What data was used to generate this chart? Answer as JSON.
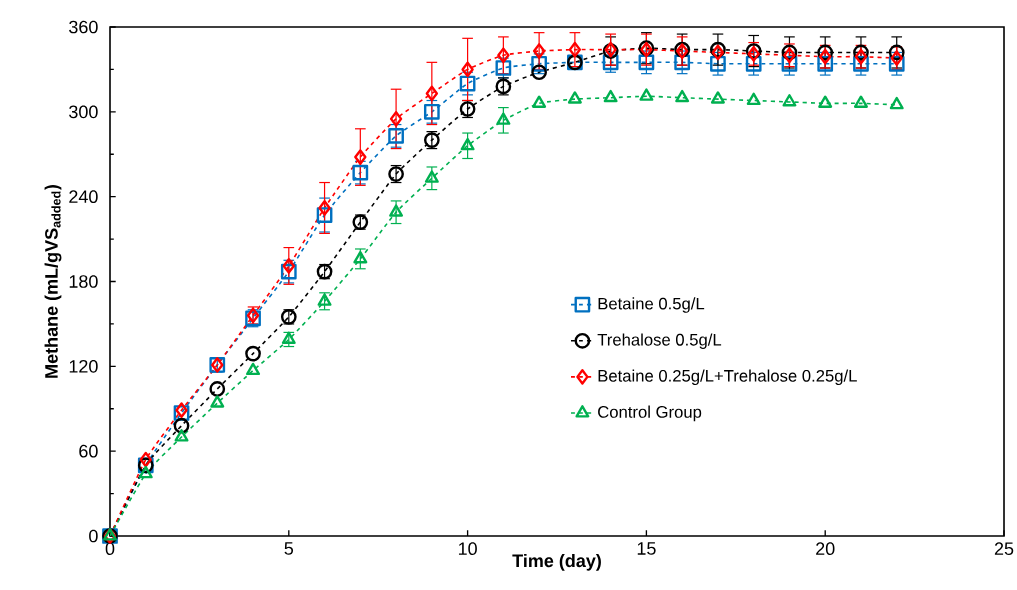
{
  "chart_data": {
    "type": "line",
    "xlabel": "Time (day)",
    "ylabel": "Methane (mL/gVS$_{added}$)",
    "x": [
      0,
      1,
      2,
      3,
      4,
      5,
      6,
      7,
      8,
      9,
      10,
      11,
      12,
      13,
      14,
      15,
      16,
      17,
      18,
      19,
      20,
      21,
      22
    ],
    "series": [
      {
        "name": "Betaine 0.5g/L",
        "color": "#0070c0",
        "marker": "square",
        "values": [
          0,
          50,
          87,
          121,
          154,
          187,
          227,
          257,
          283,
          300,
          320,
          331,
          334,
          335,
          335,
          335,
          335,
          334,
          334,
          334,
          334,
          334,
          334
        ],
        "errors": [
          null,
          null,
          null,
          5,
          6,
          8,
          12,
          8,
          8,
          8,
          8,
          7,
          7,
          null,
          7,
          8,
          8,
          8,
          8,
          8,
          8,
          8,
          8
        ]
      },
      {
        "name": "Trehalose 0.5g/L",
        "color": "#000000",
        "marker": "circle",
        "values": [
          0,
          50,
          78,
          104,
          129,
          155,
          187,
          222,
          256,
          280,
          302,
          318,
          328,
          335,
          343,
          345,
          344,
          344,
          343,
          342,
          342,
          342,
          342
        ],
        "errors": [
          null,
          null,
          null,
          null,
          null,
          5,
          5,
          5,
          6,
          6,
          6,
          6,
          null,
          null,
          10,
          11,
          11,
          11,
          11,
          11,
          11,
          11,
          11
        ]
      },
      {
        "name": "Betaine 0.25g/L+Trehalose 0.25g/L",
        "color": "#ff0000",
        "marker": "diamond",
        "values": [
          0,
          54,
          89,
          121,
          156,
          191,
          232,
          268,
          295,
          313,
          330,
          340,
          343,
          344,
          344,
          344,
          343,
          342,
          341,
          340,
          339,
          339,
          338
        ],
        "errors": [
          null,
          null,
          null,
          null,
          6,
          13,
          18,
          20,
          21,
          22,
          22,
          13,
          13,
          12,
          11,
          11,
          10,
          null,
          8,
          8,
          8,
          8,
          8
        ]
      },
      {
        "name": "Control Group",
        "color": "#00b050",
        "marker": "triangle",
        "values": [
          0,
          44,
          70,
          94,
          117,
          139,
          166,
          196,
          229,
          253,
          276,
          294,
          306,
          309,
          310,
          311,
          310,
          309,
          308,
          307,
          306,
          306,
          305
        ],
        "errors": [
          null,
          null,
          null,
          null,
          null,
          5,
          6,
          7,
          8,
          8,
          9,
          9,
          null,
          null,
          null,
          null,
          null,
          null,
          null,
          null,
          null,
          null,
          null
        ]
      }
    ],
    "xlim": [
      0,
      25
    ],
    "ylim": [
      0,
      360
    ],
    "xticks": [
      0,
      5,
      10,
      15,
      20,
      25
    ],
    "yticks": [
      0,
      60,
      120,
      180,
      240,
      300,
      360
    ],
    "grid": false,
    "legend": "right",
    "line_style": "dashed"
  }
}
